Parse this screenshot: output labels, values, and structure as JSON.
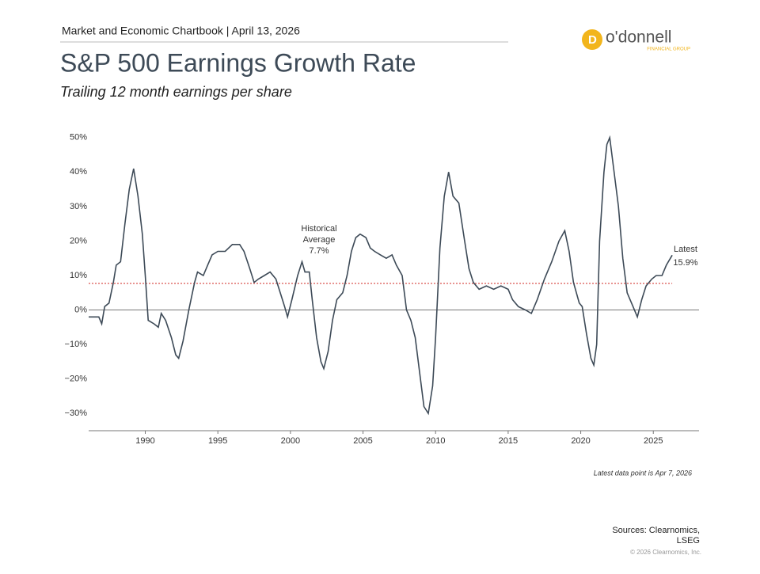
{
  "header": {
    "kicker": "Market and Economic Chartbook | April 13, 2026",
    "logo": "o'donnell",
    "logo_sub": "FINANCIAL GROUP"
  },
  "chart_data": {
    "type": "line",
    "title": "S&P 500 Earnings Growth Rate",
    "subtitle": "Trailing 12 month earnings per share",
    "x": [
      1986.1,
      1986.8,
      1987.0,
      1987.2,
      1987.5,
      1987.8,
      1988.0,
      1988.3,
      1988.6,
      1988.9,
      1989.2,
      1989.5,
      1989.8,
      1990.0,
      1990.2,
      1990.6,
      1990.9,
      1991.1,
      1991.4,
      1991.8,
      1992.1,
      1992.3,
      1992.6,
      1993.0,
      1993.4,
      1993.6,
      1994.0,
      1994.3,
      1994.6,
      1995.0,
      1995.5,
      1996.0,
      1996.5,
      1996.8,
      1997.2,
      1997.5,
      1997.8,
      1998.2,
      1998.6,
      1999.0,
      1999.3,
      1999.6,
      1999.8,
      2000.1,
      2000.5,
      2000.8,
      2001.0,
      2001.3,
      2001.5,
      2001.8,
      2002.1,
      2002.3,
      2002.6,
      2002.9,
      2003.2,
      2003.6,
      2003.9,
      2004.2,
      2004.5,
      2004.8,
      2005.2,
      2005.5,
      2005.8,
      2006.2,
      2006.6,
      2007.0,
      2007.3,
      2007.7,
      2008.0,
      2008.3,
      2008.6,
      2008.9,
      2009.2,
      2009.5,
      2009.8,
      2010.0,
      2010.3,
      2010.6,
      2010.9,
      2011.2,
      2011.6,
      2012.0,
      2012.3,
      2012.6,
      2013.0,
      2013.5,
      2014.0,
      2014.5,
      2015.0,
      2015.3,
      2015.7,
      2016.2,
      2016.6,
      2017.0,
      2017.5,
      2018.0,
      2018.5,
      2018.9,
      2019.2,
      2019.5,
      2019.9,
      2020.1,
      2020.4,
      2020.7,
      2020.9,
      2021.1,
      2021.3,
      2021.6,
      2021.8,
      2022.0,
      2022.3,
      2022.6,
      2022.9,
      2023.2,
      2023.6,
      2023.9,
      2024.2,
      2024.5,
      2024.9,
      2025.2,
      2025.6,
      2025.9,
      2026.3
    ],
    "series": [
      {
        "color": "#3d4a57",
        "values": [
          -2,
          -2,
          -4,
          1,
          2,
          8,
          13,
          14,
          25,
          35,
          41,
          33,
          22,
          10,
          -3,
          -4,
          -5,
          -1,
          -3,
          -8,
          -13,
          -14,
          -9,
          0,
          8,
          11,
          10,
          13,
          16,
          17,
          17,
          19,
          19,
          17,
          12,
          8,
          9,
          10,
          11,
          9,
          5,
          1,
          -2,
          3,
          10,
          14,
          11,
          11,
          3,
          -8,
          -15,
          -17,
          -12,
          -3,
          3,
          5,
          10,
          17,
          21,
          22,
          21,
          18,
          17,
          16,
          15,
          16,
          13,
          10,
          0,
          -3,
          -8,
          -18,
          -28,
          -30,
          -22,
          -8,
          18,
          33,
          40,
          33,
          31,
          20,
          12,
          8,
          6,
          7,
          6,
          7,
          6,
          3,
          1,
          0,
          -1,
          3,
          9,
          14,
          20,
          23,
          17,
          8,
          2,
          1,
          -7,
          -14,
          -16,
          -10,
          20,
          40,
          48,
          50,
          40,
          30,
          15,
          5,
          1,
          -2,
          3,
          7,
          9,
          10,
          10,
          13,
          15.9
        ]
      }
    ],
    "xlim": [
      1986.1,
      2028.15
    ],
    "xticks": [
      1990,
      1995,
      2000,
      2005,
      2010,
      2015,
      2020,
      2025
    ],
    "ylim": [
      -35,
      55
    ],
    "yticks": [
      {
        "value": 50,
        "label": "50%"
      },
      {
        "value": 40,
        "label": "40%"
      },
      {
        "value": 30,
        "label": "30%"
      },
      {
        "value": 20,
        "label": "20%"
      },
      {
        "value": 10,
        "label": "10%"
      },
      {
        "value": 0,
        "label": "0%"
      },
      {
        "value": -10,
        "label": "−10%"
      },
      {
        "value": -20,
        "label": "−20%"
      },
      {
        "value": -30,
        "label": "−30%"
      }
    ],
    "average": {
      "value": 7.7,
      "label": "7.7%",
      "text": [
        "Historical",
        "Average"
      ],
      "color": "#d9534f"
    },
    "latest": {
      "text": "Latest",
      "label": "15.9%"
    },
    "note": "Latest data point is Apr 7, 2026"
  },
  "footer": {
    "sources": [
      "Sources: Clearnomics,",
      "LSEG"
    ],
    "copyright": "© 2026 Clearnomics, Inc."
  }
}
